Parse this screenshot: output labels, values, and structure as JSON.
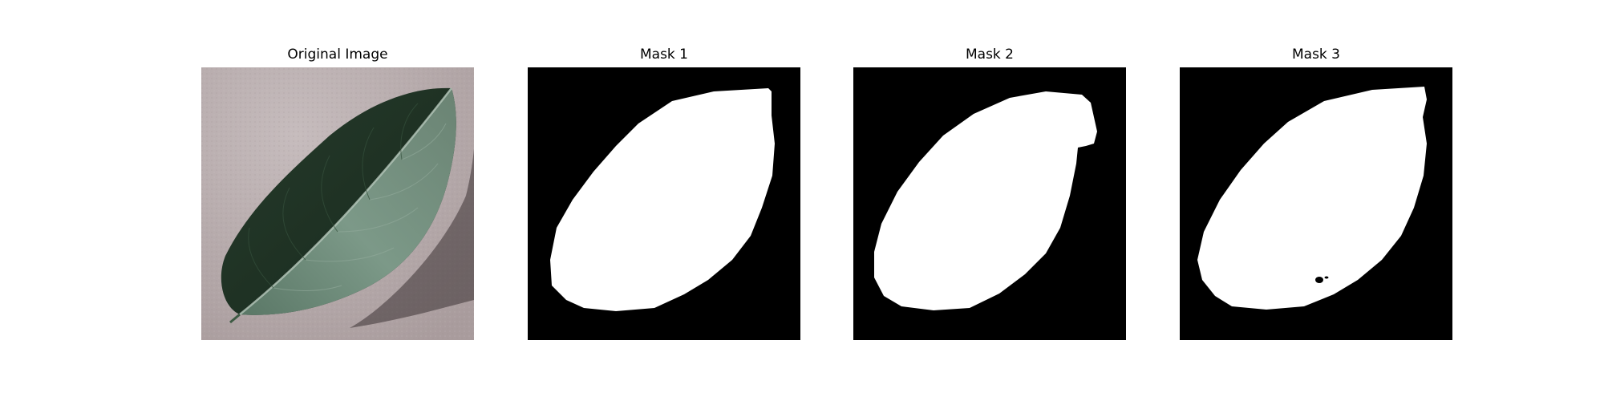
{
  "figure": {
    "panels": [
      {
        "title": "Original Image",
        "kind": "photo",
        "subject": "green-leaf"
      },
      {
        "title": "Mask 1",
        "kind": "binary-mask"
      },
      {
        "title": "Mask 2",
        "kind": "binary-mask"
      },
      {
        "title": "Mask 3",
        "kind": "binary-mask"
      }
    ],
    "colors": {
      "mask_background": "#000000",
      "mask_foreground": "#ffffff",
      "photo_background": "#b6aaac",
      "leaf_dark": "#1f3324",
      "leaf_light": "#6f8c7b"
    }
  }
}
